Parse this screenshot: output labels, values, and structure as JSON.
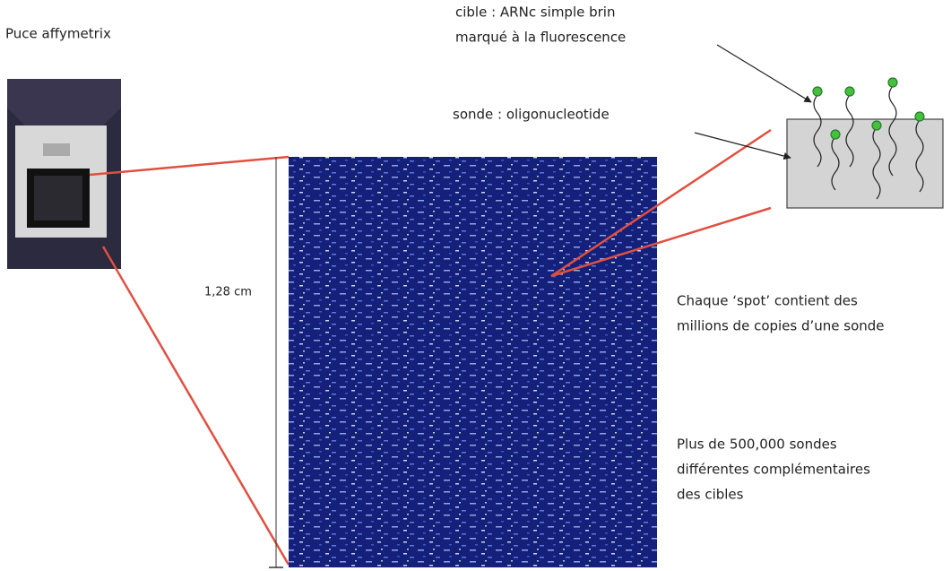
{
  "chip_label": "Puce affymetrix",
  "target_label": [
    "cible : ARNc simple brin",
    "marqué à la fluorescence"
  ],
  "probe_label": "sonde : oligonucleotide",
  "scale_label": "1,28 cm",
  "spot_note": [
    "Chaque ‘spot’ contient des",
    "millions de copies d’une sonde"
  ],
  "probe_count_note": [
    "Plus de 500,000 sondes",
    "différentes complémentaires",
    "des cibles"
  ]
}
